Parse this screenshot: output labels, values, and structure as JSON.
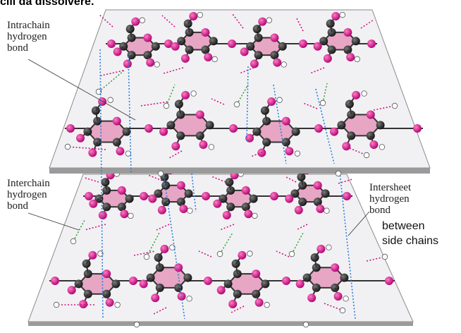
{
  "header_fragment": "cili da dissolvere.",
  "labels": {
    "intrachain": [
      "Intrachain",
      "hydrogen",
      "bond"
    ],
    "interchain": [
      "Interchain",
      "hydrogen",
      "bond"
    ],
    "intersheet": [
      "Intersheet",
      "hydrogen",
      "bond"
    ],
    "side_chains": [
      "between",
      "side chains"
    ]
  },
  "colors": {
    "sheet": "#f1f1f4",
    "sheet_edge": "#8a8a8a",
    "ring": "#e6a6c4",
    "carbon": "#1a1a1a",
    "oxygen": "#d0147f",
    "hydrogen": "#ffffff",
    "interchain_bond": "#d0147f",
    "intersheet_bond": "#2f7ed8",
    "intrachain_bond": "#3aa33a"
  }
}
